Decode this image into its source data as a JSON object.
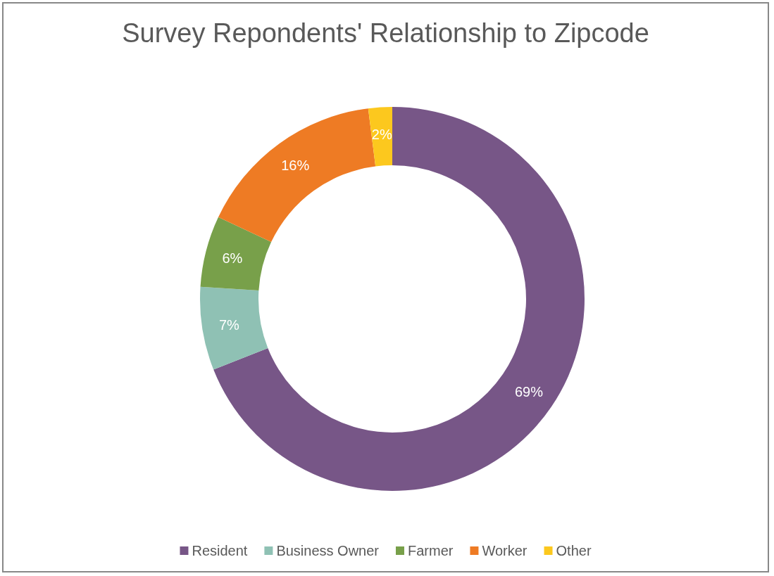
{
  "chart_data": {
    "type": "donut",
    "title": "Survey Repondents' Relationship to Zipcode",
    "categories": [
      "Resident",
      "Business Owner",
      "Farmer",
      "Worker",
      "Other"
    ],
    "values": [
      69,
      7,
      6,
      16,
      2
    ],
    "colors": [
      "#775687",
      "#8fc1b4",
      "#78a04a",
      "#ee7b24",
      "#fcc81e"
    ],
    "value_labels": [
      "69%",
      "7%",
      "6%",
      "16%",
      "2%"
    ],
    "legend": "bottom"
  }
}
